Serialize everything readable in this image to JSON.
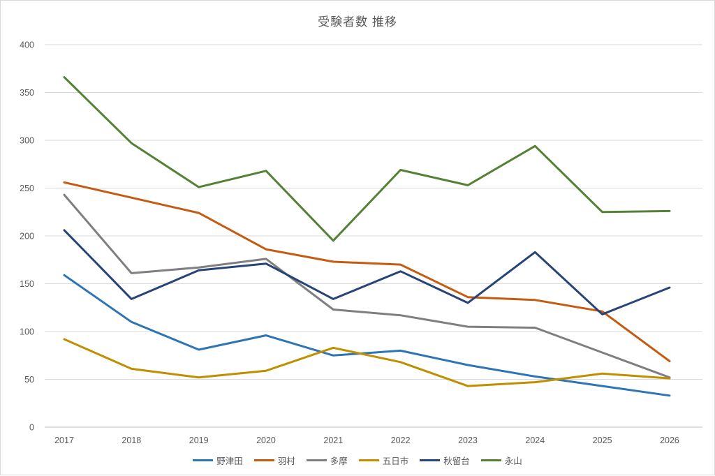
{
  "title": "受験者数 推移",
  "colors": {
    "gridline": "#D9D9D9",
    "axis_line": "#BFBFBF",
    "tick_label": "#595959",
    "title_text": "#595959",
    "legend_text": "#595959",
    "frame_border": "#D9D9D9"
  },
  "chart_data": {
    "type": "line",
    "title": "受験者数 推移",
    "xlabel": "",
    "ylabel": "",
    "ylim": [
      0,
      400
    ],
    "ytick_step": 50,
    "yticks": [
      "0",
      "50",
      "100",
      "150",
      "200",
      "250",
      "300",
      "350",
      "400"
    ],
    "grid": true,
    "legend_position": "bottom",
    "categories": [
      "2017",
      "2018",
      "2019",
      "2020",
      "2021",
      "2022",
      "2023",
      "2024",
      "2025",
      "2026"
    ],
    "series": [
      {
        "name": "野津田",
        "color": "#2E75B6",
        "values": [
          159,
          110,
          81,
          96,
          75,
          80,
          65,
          53,
          43,
          33
        ]
      },
      {
        "name": "羽村",
        "color": "#C55A11",
        "values": [
          256,
          240,
          224,
          186,
          173,
          170,
          136,
          133,
          121,
          69
        ]
      },
      {
        "name": "多摩",
        "color": "#7F7F7F",
        "values": [
          243,
          161,
          167,
          176,
          123,
          117,
          105,
          104,
          78,
          52
        ]
      },
      {
        "name": "五日市",
        "color": "#BF8F00",
        "values": [
          92,
          61,
          52,
          59,
          83,
          68,
          43,
          47,
          56,
          51
        ]
      },
      {
        "name": "秋留台",
        "color": "#264478",
        "values": [
          206,
          134,
          164,
          171,
          134,
          163,
          130,
          183,
          118,
          146
        ]
      },
      {
        "name": "永山",
        "color": "#538135",
        "values": [
          366,
          297,
          251,
          268,
          195,
          269,
          253,
          294,
          225,
          226
        ]
      }
    ]
  }
}
